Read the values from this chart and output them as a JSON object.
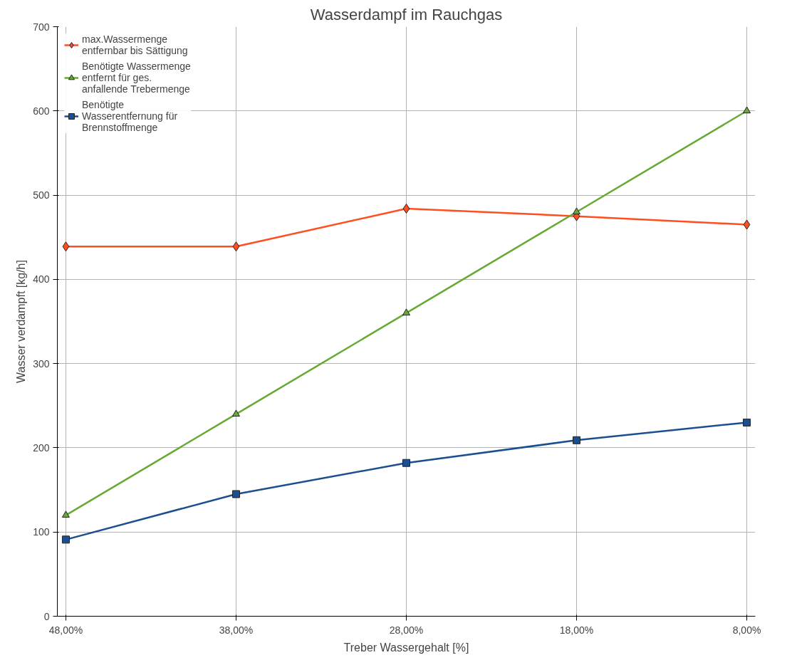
{
  "chart_data": {
    "type": "line",
    "title": "Wasserdampf im Rauchgas",
    "xlabel": "Treber Wassergehalt [%]",
    "ylabel": "Wasser verdampft [kg/h]",
    "categories": [
      "48,00%",
      "38,00%",
      "28,00%",
      "18,00%",
      "8,00%"
    ],
    "series": [
      {
        "name": "max.Wassermenge entfernbar bis Sättigung",
        "color": "#ff4f1f",
        "marker": "diamond",
        "values": [
          439,
          439,
          484,
          475,
          465
        ]
      },
      {
        "name": "Benötigte Wassermenge entfernt für ges. anfallende Trebermenge",
        "color": "#66aa33",
        "marker": "triangle",
        "values": [
          120,
          240,
          360,
          480,
          600
        ]
      },
      {
        "name": "Benötigte Wasserentfernung für Brennstoffmenge",
        "color": "#1c4f8f",
        "marker": "square",
        "values": [
          91,
          145,
          182,
          209,
          230
        ]
      }
    ],
    "ylim": [
      0,
      700
    ],
    "yticks": [
      0,
      100,
      200,
      300,
      400,
      500,
      600,
      700
    ],
    "grid": true,
    "legend": "top left"
  }
}
